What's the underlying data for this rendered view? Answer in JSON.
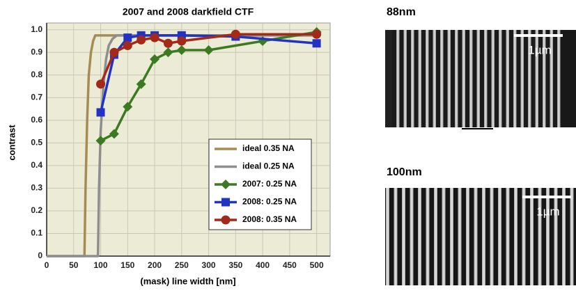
{
  "chart_data": {
    "type": "line",
    "title": "2007 and 2008 darkfield CTF",
    "xlabel": "(mask) line width [nm]",
    "ylabel": "contrast",
    "xlim": [
      0,
      525
    ],
    "ylim": [
      0,
      1.03
    ],
    "xticks": [
      0,
      50,
      100,
      150,
      200,
      250,
      300,
      350,
      400,
      450,
      500
    ],
    "yticks": [
      0,
      0.1,
      0.2,
      0.3,
      0.4,
      0.5,
      0.6,
      0.7,
      0.8,
      0.9,
      {
        "value": 1,
        "label": "1.0"
      }
    ],
    "grid": true,
    "legend": "lower right",
    "series": [
      {
        "name": "ideal 0.35 NA",
        "color": "#a58c55",
        "marker": "none",
        "x": [
          0,
          70,
          72,
          75,
          78,
          82,
          86,
          90,
          500
        ],
        "values": [
          0,
          0,
          0.3,
          0.6,
          0.8,
          0.9,
          0.95,
          0.975,
          0.975
        ]
      },
      {
        "name": "ideal 0.25 NA",
        "color": "#8e8e8e",
        "marker": "none",
        "x": [
          0,
          95,
          97,
          100,
          105,
          110,
          115,
          122,
          130,
          500
        ],
        "values": [
          0,
          0,
          0.3,
          0.55,
          0.75,
          0.87,
          0.93,
          0.96,
          0.975,
          0.975
        ]
      },
      {
        "name": "2007: 0.25 NA",
        "color": "#3c7a22",
        "marker": "diamond",
        "x": [
          100,
          125,
          150,
          175,
          200,
          225,
          250,
          300,
          400,
          500
        ],
        "values": [
          0.51,
          0.54,
          0.66,
          0.76,
          0.87,
          0.9,
          0.91,
          0.91,
          0.95,
          0.99
        ]
      },
      {
        "name": "2008: 0.25 NA",
        "color": "#2233c4",
        "marker": "square",
        "x": [
          100,
          125,
          150,
          175,
          200,
          250,
          350,
          500
        ],
        "values": [
          0.635,
          0.89,
          0.965,
          0.975,
          0.975,
          0.975,
          0.97,
          0.94
        ]
      },
      {
        "name": "2008: 0.35 NA",
        "color": "#a32a1a",
        "marker": "circle",
        "x": [
          100,
          125,
          150,
          175,
          200,
          225,
          250,
          350,
          500
        ],
        "values": [
          0.76,
          0.9,
          0.93,
          0.955,
          0.965,
          0.94,
          0.95,
          0.98,
          0.98
        ]
      }
    ]
  },
  "images": [
    {
      "label": "88nm",
      "scale": "1µm"
    },
    {
      "label": "100nm",
      "scale": "1µm"
    }
  ]
}
